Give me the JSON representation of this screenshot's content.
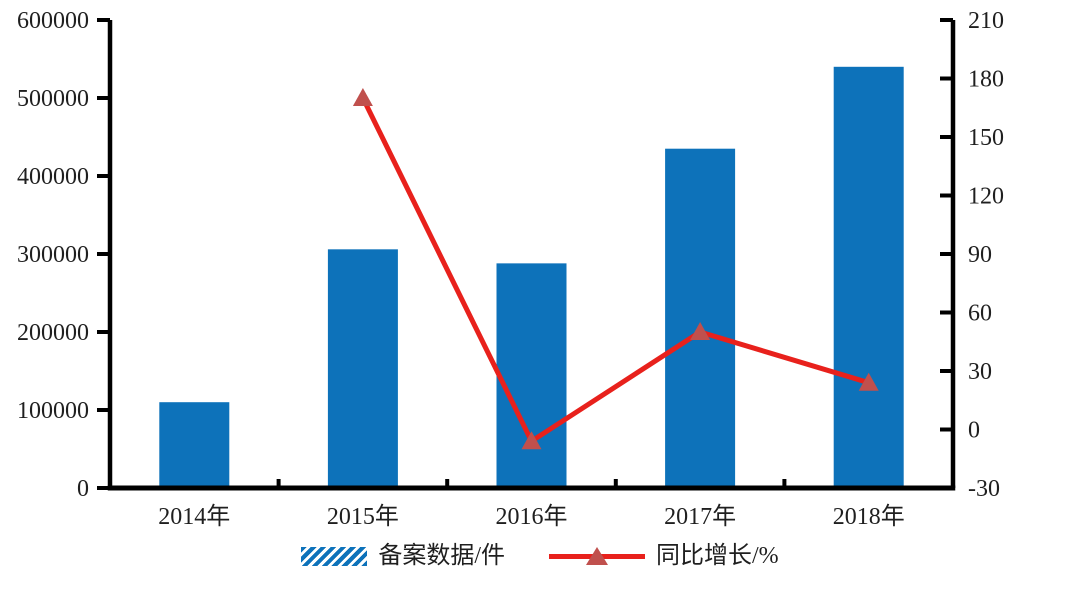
{
  "chart_data": {
    "type": "bar",
    "subtype": "bar-and-line-combo",
    "categories": [
      "2014年",
      "2015年",
      "2016年",
      "2017年",
      "2018年"
    ],
    "series": [
      {
        "name": "备案数据/件",
        "type": "bar",
        "axis": "left",
        "values": [
          110000,
          306000,
          288000,
          435000,
          540000
        ],
        "color": "#0D72BA"
      },
      {
        "name": "同比增长/%",
        "type": "line",
        "axis": "right",
        "values": [
          null,
          170,
          -6,
          50,
          24
        ],
        "color": "#E8211C",
        "marker": "triangle",
        "marker_color": "#C0504D"
      }
    ],
    "title": "",
    "xlabel": "",
    "left_axis": {
      "label": "",
      "min": 0,
      "max": 600000,
      "step": 100000,
      "ticks": [
        "0",
        "100000",
        "200000",
        "300000",
        "400000",
        "500000",
        "600000"
      ]
    },
    "right_axis": {
      "label": "",
      "min": -30,
      "max": 210,
      "step": 30,
      "ticks": [
        "-30",
        "0",
        "30",
        "60",
        "90",
        "120",
        "150",
        "180",
        "210"
      ]
    },
    "grid": false,
    "legend_position": "bottom",
    "legend": [
      {
        "label": "备案数据/件",
        "swatch": "blue-diagonal-hatch"
      },
      {
        "label": "同比增长/%",
        "swatch": "red-line-with-triangle-marker"
      }
    ],
    "colors": {
      "bar_blue": "#0D72BA",
      "line_red": "#E8211C",
      "marker_brick_red": "#C0504D",
      "axis_black": "#000000",
      "text_dark": "#1f1f1f",
      "background": "#ffffff"
    }
  }
}
